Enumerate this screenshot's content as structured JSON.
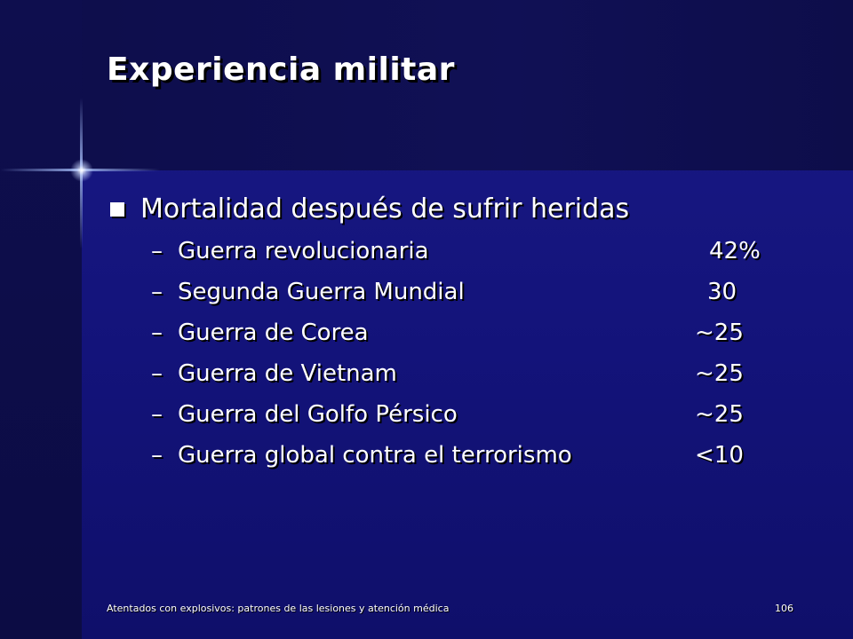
{
  "slide": {
    "title": "Experiencia militar",
    "bullet": "Mortalidad después de sufrir heridas",
    "items": [
      {
        "dash": "–",
        "label": "Guerra revolucionaria",
        "value": "42%"
      },
      {
        "dash": "–",
        "label": "Segunda Guerra Mundial",
        "value": "30"
      },
      {
        "dash": "–",
        "label": "Guerra de Corea",
        "value": "~25"
      },
      {
        "dash": "–",
        "label": "Guerra de Vietnam",
        "value": "~25"
      },
      {
        "dash": "–",
        "label": "Guerra del Golfo Pérsico",
        "value": "~25"
      },
      {
        "dash": "–",
        "label": "Guerra global contra el terrorismo",
        "value": "<10"
      }
    ]
  },
  "footer": {
    "text": "Atentados con explosivos: patrones de las lesiones y atención médica",
    "page_number": "106"
  },
  "colors": {
    "background": "#13136e",
    "text": "#ffffff",
    "accent_star": "#aac3ff"
  }
}
